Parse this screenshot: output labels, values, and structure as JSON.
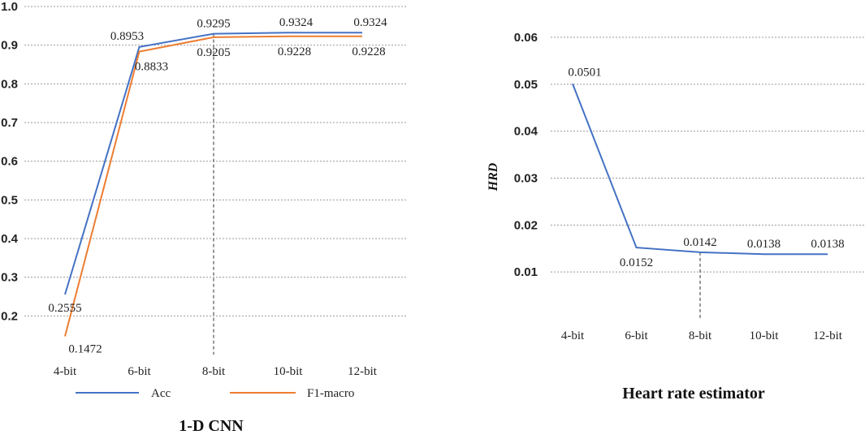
{
  "chart_data": [
    {
      "type": "line",
      "title": "1-D CNN",
      "xlabel": "",
      "ylabel": "",
      "categories": [
        "4-bit",
        "6-bit",
        "8-bit",
        "10-bit",
        "12-bit"
      ],
      "yticks": [
        "0.2",
        "0.3",
        "0.4",
        "0.5",
        "0.6",
        "0.7",
        "0.8",
        "0.9",
        "1.0"
      ],
      "ylim": [
        0.1,
        1.0
      ],
      "grid": true,
      "legend_position": "bottom",
      "marker_category": "8-bit",
      "series": [
        {
          "name": "Acc",
          "color": "#4472c4",
          "values": [
            0.2555,
            0.8953,
            0.9295,
            0.9324,
            0.9324
          ],
          "labels": [
            "0.2555",
            "0.8953",
            "0.9295",
            "0.9324",
            "0.9324"
          ]
        },
        {
          "name": "F1-macro",
          "color": "#ed7d31",
          "values": [
            0.1472,
            0.8833,
            0.9205,
            0.9228,
            0.9228
          ],
          "labels": [
            "0.1472",
            "0.8833",
            "0.9205",
            "0.9228",
            "0.9228"
          ]
        }
      ]
    },
    {
      "type": "line",
      "title": "Heart rate estimator",
      "xlabel": "",
      "ylabel": "HRD",
      "categories": [
        "4-bit",
        "6-bit",
        "8-bit",
        "10-bit",
        "12-bit"
      ],
      "yticks": [
        "0.01",
        "0.02",
        "0.03",
        "0.04",
        "0.05",
        "0.06"
      ],
      "ylim": [
        0,
        0.06
      ],
      "grid": true,
      "marker_category": "8-bit",
      "series": [
        {
          "name": "",
          "color": "#4472c4",
          "values": [
            0.0501,
            0.0152,
            0.0142,
            0.0138,
            0.0138
          ],
          "labels": [
            "0.0501",
            "0.0152",
            "0.0142",
            "0.0138",
            "0.0138"
          ]
        }
      ]
    }
  ]
}
